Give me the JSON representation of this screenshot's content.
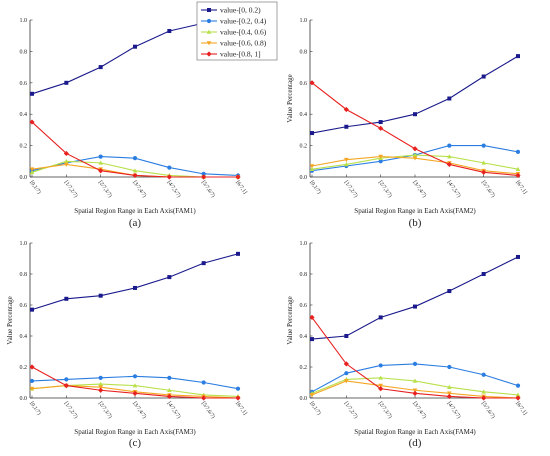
{
  "series_names": [
    "value-[0, 0.2)",
    "value-[0.2, 0.4)",
    "value-[0.4, 0.6)",
    "value-[0.6, 0.8)",
    "value-[0.8, 1]"
  ],
  "series_colors": [
    "#1a1a8c",
    "#2a7de1",
    "#b8e04a",
    "#f5a623",
    "#e8201f"
  ],
  "chart_data": [
    {
      "type": "line",
      "caption": "(a)",
      "xlabel": "Spatial Region Range in Each Axis(FAM1)",
      "ylabel": "",
      "categories": [
        "[0,1/7)",
        "[1/7,2/7)",
        "[2/7,3/7)",
        "[3/7,4/7)",
        "[4/7,5/7)",
        "[5/7,6/7)",
        "[6/7,1]"
      ],
      "y_ticks": [
        "0.0",
        "0.2",
        "0.4",
        "0.6",
        "0.8",
        "1.0"
      ],
      "ylim": [
        0,
        1
      ],
      "series": [
        {
          "name": "value-[0, 0.2)",
          "values": [
            0.53,
            0.6,
            0.7,
            0.83,
            0.93,
            0.98,
            0.99
          ]
        },
        {
          "name": "value-[0.2, 0.4)",
          "values": [
            0.04,
            0.09,
            0.13,
            0.12,
            0.06,
            0.02,
            0.01
          ]
        },
        {
          "name": "value-[0.4, 0.6)",
          "values": [
            0.03,
            0.1,
            0.09,
            0.04,
            0.01,
            0.0,
            0.0
          ]
        },
        {
          "name": "value-[0.6, 0.8)",
          "values": [
            0.05,
            0.08,
            0.05,
            0.01,
            0.0,
            0.0,
            0.0
          ]
        },
        {
          "name": "value-[0.8, 1]",
          "values": [
            0.35,
            0.15,
            0.04,
            0.01,
            0.0,
            0.0,
            0.0
          ]
        }
      ]
    },
    {
      "type": "line",
      "caption": "(b)",
      "xlabel": "Spatial Region Range in Each Axis(FAM2)",
      "ylabel": "Value Percentage",
      "categories": [
        "[0,1/7)",
        "[1/7,2/7)",
        "[2/7,3/7)",
        "[3/7,4/7)",
        "[4/7,5/7)",
        "[5/7,6/7)",
        "[6/7,1]"
      ],
      "y_ticks": [
        "0.0",
        "0.2",
        "0.4",
        "0.6",
        "0.8",
        "1.0"
      ],
      "ylim": [
        0,
        1
      ],
      "series": [
        {
          "name": "value-[0, 0.2)",
          "values": [
            0.28,
            0.32,
            0.35,
            0.4,
            0.5,
            0.64,
            0.77
          ]
        },
        {
          "name": "value-[0.2, 0.4)",
          "values": [
            0.04,
            0.07,
            0.1,
            0.14,
            0.2,
            0.2,
            0.16
          ]
        },
        {
          "name": "value-[0.4, 0.6)",
          "values": [
            0.05,
            0.08,
            0.12,
            0.14,
            0.13,
            0.09,
            0.05
          ]
        },
        {
          "name": "value-[0.6, 0.8)",
          "values": [
            0.07,
            0.11,
            0.13,
            0.12,
            0.09,
            0.04,
            0.02
          ]
        },
        {
          "name": "value-[0.8, 1]",
          "values": [
            0.6,
            0.43,
            0.31,
            0.18,
            0.08,
            0.03,
            0.01
          ]
        }
      ]
    },
    {
      "type": "line",
      "caption": "(c)",
      "xlabel": "Spatial Region Range in Each Axis(FAM3)",
      "ylabel": "Value Percentage",
      "categories": [
        "[0,1/7)",
        "[1/7,2/7)",
        "[2/7,3/7)",
        "[3/7,4/7)",
        "[4/7,5/7)",
        "[5/7,6/7)",
        "[6/7,1]"
      ],
      "y_ticks": [
        "0.0",
        "0.2",
        "0.4",
        "0.6",
        "0.8",
        "1.0"
      ],
      "ylim": [
        0,
        1
      ],
      "series": [
        {
          "name": "value-[0, 0.2)",
          "values": [
            0.57,
            0.64,
            0.66,
            0.71,
            0.78,
            0.87,
            0.93
          ]
        },
        {
          "name": "value-[0.2, 0.4)",
          "values": [
            0.11,
            0.12,
            0.13,
            0.14,
            0.13,
            0.1,
            0.06
          ]
        },
        {
          "name": "value-[0.4, 0.6)",
          "values": [
            0.06,
            0.08,
            0.09,
            0.08,
            0.05,
            0.02,
            0.01
          ]
        },
        {
          "name": "value-[0.6, 0.8)",
          "values": [
            0.06,
            0.08,
            0.07,
            0.04,
            0.02,
            0.01,
            0.0
          ]
        },
        {
          "name": "value-[0.8, 1]",
          "values": [
            0.2,
            0.08,
            0.05,
            0.03,
            0.01,
            0.0,
            0.0
          ]
        }
      ]
    },
    {
      "type": "line",
      "caption": "(d)",
      "xlabel": "Spatial Region Range in Each Axis(FAM4)",
      "ylabel": "Value Percentage",
      "categories": [
        "[0,1/7)",
        "[1/7,2/7)",
        "[2/7,3/7)",
        "[3/7,4/7)",
        "[4/7,5/7)",
        "[5/7,6/7)",
        "[6/7,1]"
      ],
      "y_ticks": [
        "0.0",
        "0.2",
        "0.4",
        "0.6",
        "0.8",
        "1.0"
      ],
      "ylim": [
        0,
        1
      ],
      "series": [
        {
          "name": "value-[0, 0.2)",
          "values": [
            0.38,
            0.4,
            0.52,
            0.59,
            0.69,
            0.8,
            0.91
          ]
        },
        {
          "name": "value-[0.2, 0.4)",
          "values": [
            0.04,
            0.16,
            0.21,
            0.22,
            0.2,
            0.15,
            0.08
          ]
        },
        {
          "name": "value-[0.4, 0.6)",
          "values": [
            0.03,
            0.12,
            0.13,
            0.11,
            0.07,
            0.04,
            0.02
          ]
        },
        {
          "name": "value-[0.6, 0.8)",
          "values": [
            0.02,
            0.11,
            0.08,
            0.05,
            0.03,
            0.01,
            0.0
          ]
        },
        {
          "name": "value-[0.8, 1]",
          "values": [
            0.52,
            0.22,
            0.06,
            0.03,
            0.01,
            0.0,
            0.0
          ]
        }
      ]
    }
  ]
}
